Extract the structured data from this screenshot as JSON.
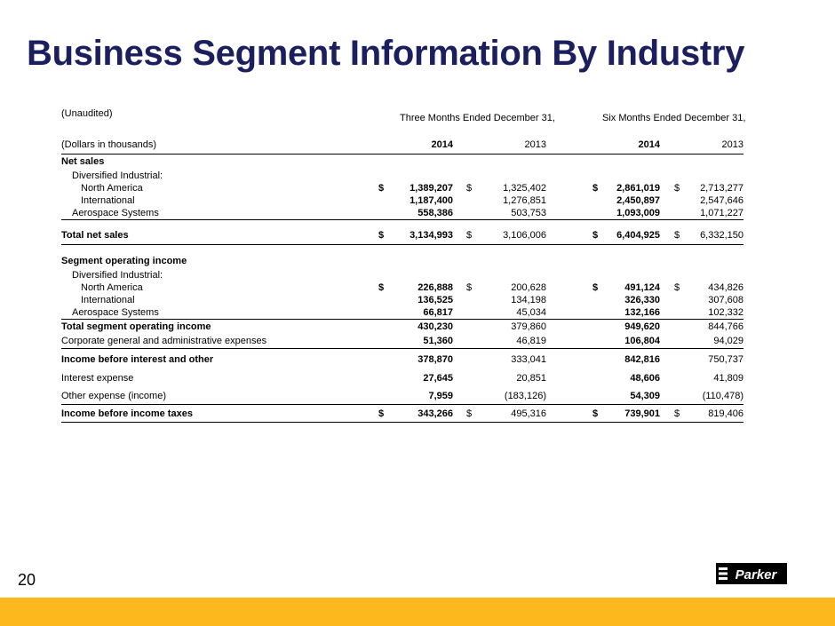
{
  "title": "Business Segment Information By Industry",
  "page_number": "20",
  "table": {
    "unaudited": "(Unaudited)",
    "three_months": "Three Months Ended December 31,",
    "six_months": "Six Months Ended December 31,",
    "dollars_note": "(Dollars in thousands)",
    "years": [
      "2014",
      "2013",
      "2014",
      "2013"
    ],
    "rows": [
      {
        "label": "Net sales",
        "style": "section",
        "values": []
      },
      {
        "label": "Diversified Industrial:",
        "style": "ind1",
        "values": []
      },
      {
        "label": "North America",
        "style": "ind2",
        "values": [
          "1,389,207",
          "1,325,402",
          "2,861,019",
          "2,713,277"
        ],
        "dollars": true
      },
      {
        "label": "International",
        "style": "ind2",
        "values": [
          "1,187,400",
          "1,276,851",
          "2,450,897",
          "2,547,646"
        ]
      },
      {
        "label": "Aerospace Systems",
        "style": "ind1",
        "values": [
          "558,386",
          "503,753",
          "1,093,009",
          "1,071,227"
        ],
        "underline": true
      },
      {
        "label": "Total net sales",
        "style": "total",
        "values": [
          "3,134,993",
          "3,106,006",
          "6,404,925",
          "6,332,150"
        ],
        "dollars": true,
        "underline": true
      },
      {
        "label": "Segment operating income",
        "style": "section",
        "values": []
      },
      {
        "label": "Diversified Industrial:",
        "style": "ind1",
        "values": []
      },
      {
        "label": "North America",
        "style": "ind2",
        "values": [
          "226,888",
          "200,628",
          "491,124",
          "434,826"
        ],
        "dollars": true
      },
      {
        "label": "International",
        "style": "ind2",
        "values": [
          "136,525",
          "134,198",
          "326,330",
          "307,608"
        ]
      },
      {
        "label": "Aerospace Systems",
        "style": "ind1",
        "values": [
          "66,817",
          "45,034",
          "132,166",
          "102,332"
        ],
        "underline": true
      },
      {
        "label": "Total segment operating income",
        "style": "total",
        "values": [
          "430,230",
          "379,860",
          "949,620",
          "844,766"
        ]
      },
      {
        "label": "Corporate general and administrative expenses",
        "style": "plain",
        "values": [
          "51,360",
          "46,819",
          "106,804",
          "94,029"
        ],
        "underline": true
      },
      {
        "label": "Income before interest and other",
        "style": "total",
        "values": [
          "378,870",
          "333,041",
          "842,816",
          "750,737"
        ]
      },
      {
        "label": "Interest expense",
        "style": "plain",
        "values": [
          "27,645",
          "20,851",
          "48,606",
          "41,809"
        ]
      },
      {
        "label": "Other expense (income)",
        "style": "plain",
        "values": [
          "7,959",
          "(183,126)",
          "54,309",
          "(110,478)"
        ],
        "underline": true
      },
      {
        "label": "Income before income taxes",
        "style": "total",
        "values": [
          "343,266",
          "495,316",
          "739,901",
          "819,406"
        ],
        "dollars": true,
        "underline": true
      }
    ]
  },
  "currency_symbol": "$",
  "logo_text": "Parker",
  "colors": {
    "title": "#1b1f5e",
    "footer_bar": "#fdb81e"
  }
}
